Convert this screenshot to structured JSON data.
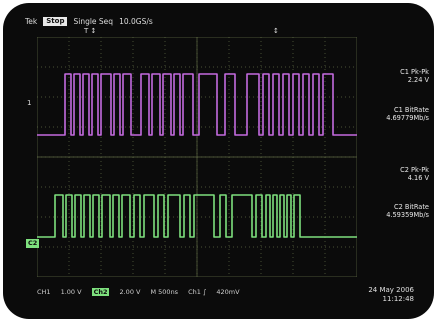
{
  "colors": {
    "ch1": "#c46be0",
    "ch2": "#7ee07e",
    "grid": "#5f6a45",
    "background": "#0b0b0b"
  },
  "topbar": {
    "brand": "Tek",
    "status": "Stop",
    "mode": "Single Seq",
    "rate": "10.0GS/s"
  },
  "channels": {
    "ch1_marker": "1",
    "ch2_marker": "C2"
  },
  "measurements": {
    "c1_pkpk_label": "C1 Pk-Pk",
    "c1_pkpk_value": "2.24 V",
    "c1_bitrate_label": "C1 BitRate",
    "c1_bitrate_value": "4.69779Mb/s",
    "c2_pkpk_label": "C2 Pk-Pk",
    "c2_pkpk_value": "4.16 V",
    "c2_bitrate_label": "C2 BitRate",
    "c2_bitrate_value": "4.59359Mb/s"
  },
  "bottombar": {
    "ch1_label": "CH1",
    "ch1_scale": "1.00 V",
    "ch2_label": "Ch2",
    "ch2_scale": "2.00 V",
    "timebase": "M  500ns",
    "trigger": "Ch1 ∫",
    "trigger_level": "420mV"
  },
  "datetime": {
    "date": "24 May 2006",
    "time": "11:12:48"
  }
}
